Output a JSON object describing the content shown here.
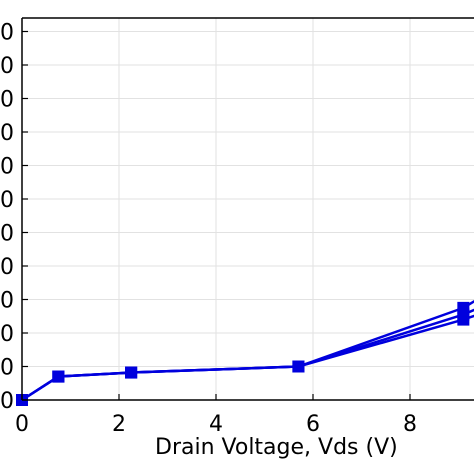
{
  "chart_data": {
    "type": "line",
    "title": "",
    "xlabel": "Drain Voltage, Vds (V)",
    "ylabel": "",
    "xlim": [
      0,
      9.5
    ],
    "ylim": [
      0,
      11
    ],
    "x_ticks": [
      0,
      2,
      4,
      6,
      8
    ],
    "x_tick_labels": [
      "0",
      "2",
      "4",
      "6",
      "8"
    ],
    "y_ticks": [
      0,
      1,
      2,
      3,
      4,
      5,
      6,
      7,
      8,
      9,
      10,
      11
    ],
    "y_tick_labels": [
      "0",
      "0",
      "0",
      "0",
      "0",
      "0",
      "0",
      "0",
      "0",
      "0",
      "0",
      "0"
    ],
    "grid": true,
    "legend": "none",
    "series": [
      {
        "color": "#0000dd",
        "marker": "square",
        "points": [
          [
            0,
            0.0
          ],
          [
            0.75,
            0.7
          ],
          [
            2.25,
            0.82
          ],
          [
            5.7,
            1.0
          ],
          [
            9.1,
            2.75
          ],
          [
            9.5,
            3.1
          ]
        ]
      },
      {
        "color": "#0000dd",
        "marker": "square",
        "points": [
          [
            0,
            0.0
          ],
          [
            0.75,
            0.7
          ],
          [
            2.25,
            0.82
          ],
          [
            5.7,
            1.0
          ],
          [
            9.1,
            2.55
          ],
          [
            9.5,
            2.8
          ]
        ]
      },
      {
        "color": "#0000dd",
        "marker": "square",
        "points": [
          [
            0,
            0.0
          ],
          [
            0.75,
            0.7
          ],
          [
            2.25,
            0.82
          ],
          [
            5.7,
            1.0
          ],
          [
            9.1,
            2.4
          ],
          [
            9.5,
            2.6
          ]
        ]
      }
    ]
  }
}
